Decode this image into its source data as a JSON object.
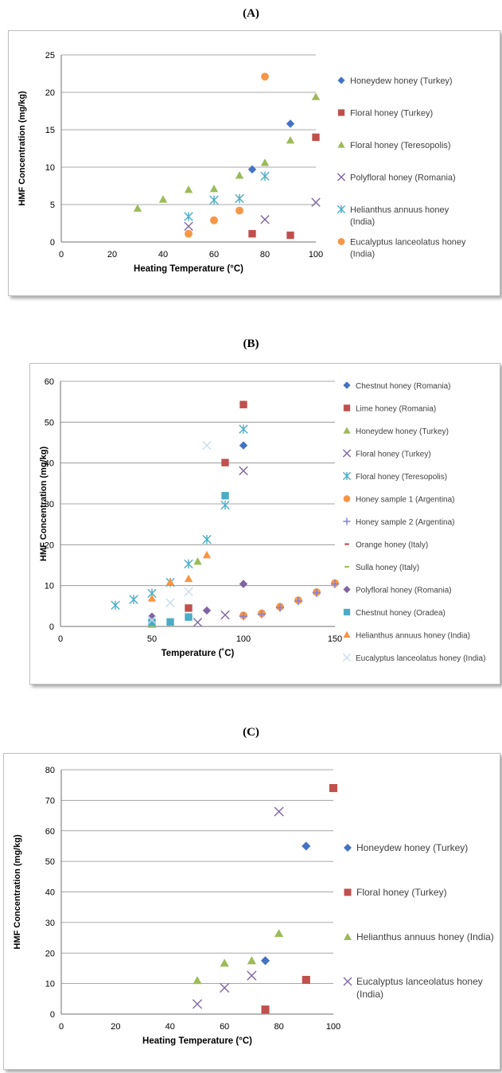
{
  "panel_labels": [
    "(A)",
    "(B)",
    "(C)"
  ],
  "colors": {
    "blue": "#4472C4",
    "red": "#C0504D",
    "green": "#9BBB59",
    "purple": "#8064A2",
    "teal": "#4BACC6",
    "orange": "#F79646",
    "lavender": "#A5A5D8",
    "lightcyan": "#C8DCEE"
  },
  "chart_data": [
    {
      "type": "scatter",
      "title": "",
      "xlabel": "Heating Temperature (°C)",
      "ylabel": "HMF Concentration (mg/kg)",
      "xlim": [
        0,
        100
      ],
      "ylim": [
        0,
        25
      ],
      "xticks": [
        0,
        20,
        40,
        60,
        80,
        100
      ],
      "yticks": [
        0,
        5,
        10,
        15,
        20,
        25
      ],
      "grid": "horizontal",
      "legend": "right",
      "series": [
        {
          "name": "Honeydew honey (Turkey)",
          "marker": "diamond",
          "color": "#4472C4",
          "points": [
            [
              75,
              9.7
            ],
            [
              90,
              15.8
            ]
          ]
        },
        {
          "name": "Floral honey (Turkey)",
          "marker": "square",
          "color": "#C0504D",
          "points": [
            [
              75,
              1.1
            ],
            [
              90,
              0.9
            ],
            [
              100,
              14.0
            ]
          ]
        },
        {
          "name": "Floral honey (Teresopolis)",
          "marker": "triangle",
          "color": "#9BBB59",
          "points": [
            [
              30,
              4.5
            ],
            [
              40,
              5.7
            ],
            [
              50,
              7.0
            ],
            [
              60,
              7.1
            ],
            [
              70,
              8.9
            ],
            [
              80,
              10.6
            ],
            [
              90,
              13.6
            ],
            [
              100,
              19.4
            ]
          ]
        },
        {
          "name": "Polyfloral honey (Romania)",
          "marker": "x",
          "color": "#8064A2",
          "points": [
            [
              50,
              2.1
            ],
            [
              80,
              3.0
            ],
            [
              100,
              5.3
            ]
          ]
        },
        {
          "name": "Helianthus annuus honey (India)",
          "marker": "star",
          "color": "#4BACC6",
          "points": [
            [
              50,
              3.4
            ],
            [
              60,
              5.6
            ],
            [
              70,
              5.8
            ],
            [
              80,
              8.8
            ]
          ]
        },
        {
          "name": "Eucalyptus lanceolatus honey (India)",
          "marker": "circle",
          "color": "#F79646",
          "points": [
            [
              50,
              1.1
            ],
            [
              60,
              2.9
            ],
            [
              70,
              4.2
            ],
            [
              80,
              22.1
            ]
          ]
        }
      ]
    },
    {
      "type": "scatter",
      "title": "",
      "xlabel": "Temperature (˚C)",
      "ylabel": "HMF Concentration (mg/kg)",
      "xlim": [
        0,
        150
      ],
      "ylim": [
        0,
        60
      ],
      "xticks": [
        0,
        50,
        100,
        150
      ],
      "yticks": [
        0,
        10,
        20,
        30,
        40,
        50,
        60
      ],
      "grid": "horizontal",
      "legend": "right",
      "series": [
        {
          "name": "Chestnut honey (Romania)",
          "marker": "diamond",
          "color": "#4472C4",
          "points": [
            [
              100,
              44.3
            ]
          ]
        },
        {
          "name": "Lime honey (Romania)",
          "marker": "square",
          "color": "#C0504D",
          "points": [
            [
              70,
              4.5
            ],
            [
              90,
              40.1
            ],
            [
              100,
              54.3
            ]
          ]
        },
        {
          "name": "Honeydew honey (Turkey)",
          "marker": "triangle",
          "color": "#9BBB59",
          "points": [
            [
              75,
              15.9
            ],
            [
              50,
              0.5
            ]
          ]
        },
        {
          "name": "Floral honey (Turkey)",
          "marker": "x",
          "color": "#8064A2",
          "points": [
            [
              75,
              1.0
            ],
            [
              90,
              2.8
            ],
            [
              100,
              38.1
            ]
          ]
        },
        {
          "name": "Floral honey (Teresopolis)",
          "marker": "star",
          "color": "#4BACC6",
          "points": [
            [
              30,
              5.2
            ],
            [
              40,
              6.6
            ],
            [
              50,
              8.1
            ],
            [
              60,
              10.8
            ],
            [
              70,
              15.3
            ],
            [
              80,
              21.3
            ],
            [
              90,
              29.7
            ],
            [
              100,
              48.3
            ]
          ]
        },
        {
          "name": "Honey sample 1 (Argentina)",
          "marker": "circle",
          "color": "#F79646",
          "points": [
            [
              100,
              2.7
            ],
            [
              110,
              3.2
            ],
            [
              120,
              4.8
            ],
            [
              130,
              6.4
            ],
            [
              140,
              8.4
            ],
            [
              150,
              10.6
            ]
          ]
        },
        {
          "name": "Honey sample 2 (Argentina)",
          "marker": "plus",
          "color": "#7F7FE0",
          "points": [
            [
              100,
              2.5
            ],
            [
              110,
              3.0
            ],
            [
              120,
              4.6
            ],
            [
              130,
              6.2
            ],
            [
              140,
              8.2
            ],
            [
              150,
              10.4
            ]
          ]
        },
        {
          "name": "Orange honey (Italy)",
          "marker": "dash",
          "color": "#C0504D",
          "points": [
            [
              90,
              31.8
            ]
          ]
        },
        {
          "name": "Sulla honey (Italy)",
          "marker": "dash",
          "color": "#9BBB59",
          "points": [
            [
              90,
              31.5
            ]
          ]
        },
        {
          "name": "Polyfloral honey (Romania)",
          "marker": "diamond",
          "color": "#8064A2",
          "points": [
            [
              50,
              2.4
            ],
            [
              80,
              3.9
            ],
            [
              100,
              10.4
            ]
          ]
        },
        {
          "name": "Chestnut honey (Oradea)",
          "marker": "square",
          "color": "#4BACC6",
          "points": [
            [
              50,
              1.0
            ],
            [
              60,
              1.1
            ],
            [
              70,
              2.3
            ],
            [
              90,
              32.0
            ]
          ]
        },
        {
          "name": "Helianthus annuus honey (India)",
          "marker": "triangle",
          "color": "#F79646",
          "points": [
            [
              50,
              6.9
            ],
            [
              60,
              10.9
            ],
            [
              70,
              11.7
            ],
            [
              80,
              17.5
            ]
          ]
        },
        {
          "name": "Eucalyptus lanceolatus honey (India)",
          "marker": "x",
          "color": "#C8DCEE",
          "points": [
            [
              50,
              1.6
            ],
            [
              60,
              5.8
            ],
            [
              70,
              8.5
            ],
            [
              80,
              44.3
            ]
          ]
        }
      ]
    },
    {
      "type": "scatter",
      "title": "",
      "xlabel": "Heating Temperature (°C)",
      "ylabel": "HMF Concentration (mg/kg)",
      "xlim": [
        0,
        100
      ],
      "ylim": [
        0,
        80
      ],
      "xticks": [
        0,
        20,
        40,
        60,
        80,
        100
      ],
      "yticks": [
        0,
        10,
        20,
        30,
        40,
        50,
        60,
        70,
        80
      ],
      "grid": "horizontal",
      "legend": "right",
      "series": [
        {
          "name": "Honeydew honey (Turkey)",
          "marker": "diamond",
          "color": "#4472C4",
          "points": [
            [
              75,
              17.5
            ],
            [
              90,
              55.0
            ]
          ]
        },
        {
          "name": "Floral honey (Turkey)",
          "marker": "square",
          "color": "#C0504D",
          "points": [
            [
              75,
              1.5
            ],
            [
              90,
              11.2
            ],
            [
              100,
              74.0
            ]
          ]
        },
        {
          "name": "Helianthus annuus honey (India)",
          "marker": "triangle",
          "color": "#9BBB59",
          "points": [
            [
              50,
              11.0
            ],
            [
              60,
              16.7
            ],
            [
              70,
              17.5
            ],
            [
              80,
              26.4
            ]
          ]
        },
        {
          "name": "Eucalyptus lanceolatus honey (India)",
          "marker": "x",
          "color": "#8064A2",
          "points": [
            [
              50,
              3.3
            ],
            [
              60,
              8.6
            ],
            [
              70,
              12.6
            ],
            [
              80,
              66.3
            ]
          ]
        }
      ]
    }
  ]
}
